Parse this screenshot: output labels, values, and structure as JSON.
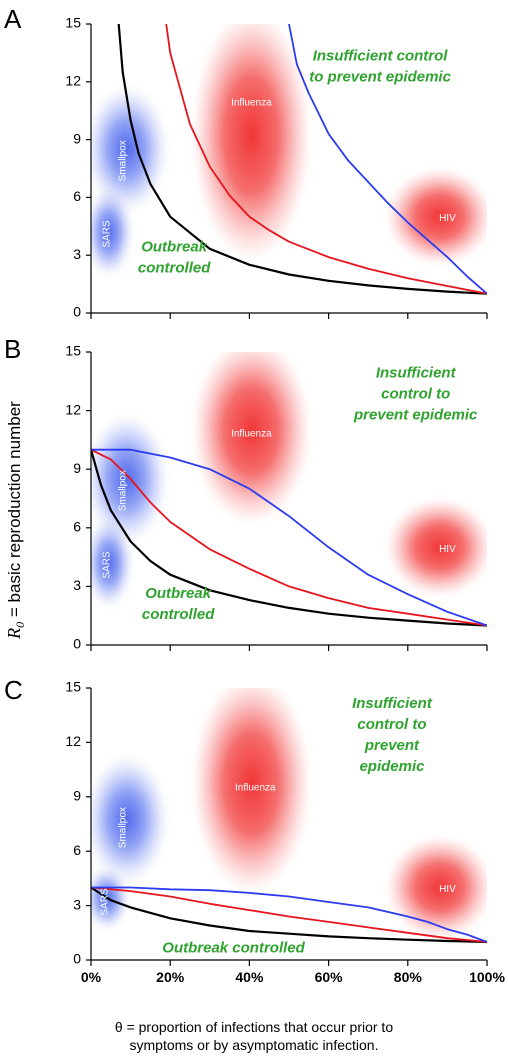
{
  "ylabel_symbol": "R",
  "ylabel_subscript": "0",
  "ylabel_rest": " = basic reproduction number",
  "xlabel_line1": "θ = proportion of infections that occur prior to",
  "xlabel_line2": "symptoms or by asymptomatic infection.",
  "colors": {
    "black": "#000000",
    "red": "#e8141c",
    "blue": "#2b3bef",
    "region_text": "#2fa32f",
    "blob_red": "#f03030",
    "blob_blue": "#3a55e8"
  },
  "chart_data": [
    {
      "type": "line",
      "panel_label": "A",
      "xlim": [
        0,
        1
      ],
      "ylim": [
        0,
        15
      ],
      "xticks": [
        0,
        0.2,
        0.4,
        0.6,
        0.8,
        1.0
      ],
      "xtick_labels": [
        "",
        "",
        "",
        "",
        "",
        ""
      ],
      "yticks": [
        0,
        3,
        6,
        9,
        12,
        15
      ],
      "ytick_labels": [
        "0",
        "3",
        "6",
        "9",
        "12",
        "15"
      ],
      "region_labels": [
        {
          "lines": [
            "Insufficient control",
            "to prevent epidemic"
          ],
          "x": 0.73,
          "y": 13.1,
          "size": 15
        },
        {
          "lines": [
            "Outbreak",
            "controlled"
          ],
          "x": 0.21,
          "y": 3.2,
          "size": 15
        }
      ],
      "diseases": [
        {
          "name": "Influenza",
          "color": "red",
          "x0": 0.27,
          "x1": 0.54,
          "y0": 3.0,
          "y1": 15.5,
          "label_x": 0.405,
          "label_y": 10.9,
          "rotate": false
        },
        {
          "name": "HIV",
          "color": "red",
          "x0": 0.76,
          "x1": 1.0,
          "y0": 2.8,
          "y1": 7.2,
          "label_x": 0.9,
          "label_y": 4.9,
          "rotate": false
        },
        {
          "name": "Smallpox",
          "color": "blue",
          "x0": 0.0,
          "x1": 0.18,
          "y0": 5.5,
          "y1": 11.5,
          "label_x": 0.08,
          "label_y": 7.9,
          "rotate": true
        },
        {
          "name": "SARS",
          "color": "blue",
          "x0": 0.0,
          "x1": 0.09,
          "y0": 2.2,
          "y1": 6.2,
          "label_x": 0.04,
          "label_y": 4.1,
          "rotate": true
        }
      ],
      "series": [
        {
          "color": "black",
          "x": [
            0.07,
            0.08,
            0.1,
            0.12,
            0.15,
            0.2,
            0.3,
            0.4,
            0.5,
            0.6,
            0.7,
            0.8,
            0.9,
            1.0
          ],
          "y": [
            15,
            12.5,
            10,
            8.3,
            6.7,
            5,
            3.33,
            2.5,
            2,
            1.67,
            1.43,
            1.25,
            1.11,
            1
          ]
        },
        {
          "color": "red",
          "x": [
            0.19,
            0.2,
            0.25,
            0.3,
            0.35,
            0.4,
            0.45,
            0.5,
            0.6,
            0.7,
            0.8,
            0.9,
            1.0
          ],
          "y": [
            15,
            13.5,
            9.8,
            7.6,
            6.1,
            5.0,
            4.3,
            3.7,
            2.9,
            2.3,
            1.8,
            1.4,
            1.0
          ]
        },
        {
          "color": "blue",
          "x": [
            0.5,
            0.52,
            0.55,
            0.6,
            0.65,
            0.7,
            0.75,
            0.8,
            0.85,
            0.9,
            0.95,
            1.0
          ],
          "y": [
            15,
            12.9,
            11.4,
            9.3,
            7.9,
            6.8,
            5.7,
            4.7,
            3.8,
            2.9,
            1.9,
            1.0
          ]
        }
      ]
    },
    {
      "type": "line",
      "panel_label": "B",
      "xlim": [
        0,
        1
      ],
      "ylim": [
        0,
        15
      ],
      "xticks": [
        0,
        0.2,
        0.4,
        0.6,
        0.8,
        1.0
      ],
      "xtick_labels": [
        "",
        "",
        "",
        "",
        "",
        ""
      ],
      "yticks": [
        0,
        3,
        6,
        9,
        12,
        15
      ],
      "ytick_labels": [
        "0",
        "3",
        "6",
        "9",
        "12",
        "15"
      ],
      "region_labels": [
        {
          "lines": [
            "Insufficient",
            "control to",
            "prevent epidemic"
          ],
          "x": 0.82,
          "y": 13.7,
          "size": 15
        },
        {
          "lines": [
            "Outbreak",
            "controlled"
          ],
          "x": 0.22,
          "y": 2.4,
          "size": 15
        }
      ],
      "diseases": [
        {
          "name": "Influenza",
          "color": "red",
          "x0": 0.27,
          "x1": 0.54,
          "y0": 6.5,
          "y1": 15.5,
          "label_x": 0.405,
          "label_y": 10.8,
          "rotate": false
        },
        {
          "name": "HIV",
          "color": "red",
          "x0": 0.76,
          "x1": 1.0,
          "y0": 2.8,
          "y1": 7.2,
          "label_x": 0.9,
          "label_y": 4.9,
          "rotate": false
        },
        {
          "name": "Smallpox",
          "color": "blue",
          "x0": 0.0,
          "x1": 0.18,
          "y0": 5.5,
          "y1": 11.5,
          "label_x": 0.08,
          "label_y": 7.9,
          "rotate": true
        },
        {
          "name": "SARS",
          "color": "blue",
          "x0": 0.0,
          "x1": 0.09,
          "y0": 2.2,
          "y1": 6.2,
          "label_x": 0.04,
          "label_y": 4.1,
          "rotate": true
        }
      ],
      "series": [
        {
          "color": "black",
          "x": [
            0,
            0.025,
            0.05,
            0.1,
            0.15,
            0.2,
            0.3,
            0.4,
            0.5,
            0.6,
            0.7,
            0.8,
            0.9,
            1.0
          ],
          "y": [
            10,
            8.2,
            6.9,
            5.3,
            4.3,
            3.6,
            2.8,
            2.3,
            1.9,
            1.6,
            1.4,
            1.25,
            1.1,
            1.0
          ]
        },
        {
          "color": "red",
          "x": [
            0,
            0.05,
            0.1,
            0.15,
            0.2,
            0.3,
            0.4,
            0.5,
            0.6,
            0.7,
            0.8,
            0.9,
            1.0
          ],
          "y": [
            10,
            9.5,
            8.5,
            7.3,
            6.3,
            4.9,
            3.9,
            3.0,
            2.4,
            1.9,
            1.6,
            1.3,
            1.0
          ]
        },
        {
          "color": "blue",
          "x": [
            0,
            0.1,
            0.2,
            0.3,
            0.4,
            0.5,
            0.6,
            0.7,
            0.8,
            0.9,
            1.0
          ],
          "y": [
            10,
            10,
            9.6,
            9.0,
            8.0,
            6.6,
            5.0,
            3.6,
            2.6,
            1.7,
            1.0
          ]
        }
      ]
    },
    {
      "type": "line",
      "panel_label": "C",
      "xlim": [
        0,
        1
      ],
      "ylim": [
        0,
        15
      ],
      "xticks": [
        0,
        0.2,
        0.4,
        0.6,
        0.8,
        1.0
      ],
      "xtick_labels": [
        "0%",
        "20%",
        "40%",
        "60%",
        "80%",
        "100%"
      ],
      "yticks": [
        0,
        3,
        6,
        9,
        12,
        15
      ],
      "ytick_labels": [
        "0",
        "3",
        "6",
        "9",
        "12",
        "15"
      ],
      "region_labels": [
        {
          "lines": [
            "Insufficient",
            "control to",
            "prevent",
            "epidemic"
          ],
          "x": 0.76,
          "y": 13.9,
          "size": 15
        },
        {
          "lines": [
            "Outbreak controlled"
          ],
          "x": 0.36,
          "y": 0.4,
          "size": 15
        }
      ],
      "diseases": [
        {
          "name": "Influenza",
          "color": "red",
          "x0": 0.27,
          "x1": 0.54,
          "y0": 4.0,
          "y1": 15.5,
          "label_x": 0.415,
          "label_y": 9.5,
          "rotate": false
        },
        {
          "name": "HIV",
          "color": "red",
          "x0": 0.76,
          "x1": 1.0,
          "y0": 1.5,
          "y1": 6.5,
          "label_x": 0.9,
          "label_y": 3.9,
          "rotate": false
        },
        {
          "name": "Smallpox",
          "color": "blue",
          "x0": 0.0,
          "x1": 0.18,
          "y0": 4.5,
          "y1": 11.0,
          "label_x": 0.08,
          "label_y": 7.3,
          "rotate": true
        },
        {
          "name": "SARS",
          "color": "blue",
          "x0": 0.0,
          "x1": 0.08,
          "y0": 2.0,
          "y1": 4.8,
          "label_x": 0.035,
          "label_y": 3.2,
          "rotate": true
        }
      ],
      "series": [
        {
          "color": "black",
          "x": [
            0,
            0.05,
            0.1,
            0.2,
            0.3,
            0.4,
            0.5,
            0.6,
            0.7,
            0.8,
            0.9,
            1.0
          ],
          "y": [
            4.0,
            3.3,
            2.9,
            2.3,
            1.9,
            1.6,
            1.45,
            1.3,
            1.2,
            1.12,
            1.05,
            1.0
          ]
        },
        {
          "color": "red",
          "x": [
            0,
            0.1,
            0.2,
            0.3,
            0.4,
            0.5,
            0.6,
            0.7,
            0.8,
            0.9,
            1.0
          ],
          "y": [
            4.0,
            3.8,
            3.5,
            3.1,
            2.75,
            2.4,
            2.1,
            1.8,
            1.5,
            1.2,
            1.0
          ]
        },
        {
          "color": "blue",
          "x": [
            0,
            0.1,
            0.2,
            0.3,
            0.4,
            0.5,
            0.6,
            0.7,
            0.8,
            0.85,
            0.9,
            0.95,
            1.0
          ],
          "y": [
            4.0,
            4.0,
            3.9,
            3.85,
            3.7,
            3.5,
            3.2,
            2.9,
            2.4,
            2.1,
            1.7,
            1.4,
            1.0
          ]
        }
      ]
    }
  ]
}
